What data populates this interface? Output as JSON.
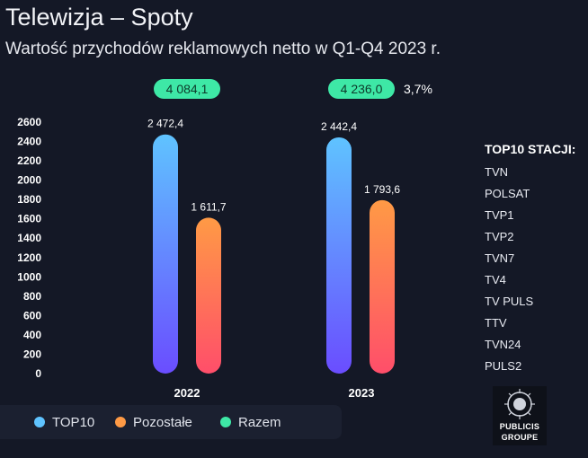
{
  "header": {
    "title": "Telewizja – Spoty",
    "subtitle": "Wartość przychodów reklamowych netto w Q1-Q4 2023 r."
  },
  "chart_data": {
    "type": "bar",
    "categories": [
      "2022",
      "2023"
    ],
    "series": [
      {
        "name": "TOP10",
        "values": [
          2472.4,
          2442.4
        ],
        "labels": [
          "2 472,4",
          "2 442,4"
        ]
      },
      {
        "name": "Pozostałe",
        "values": [
          1611.7,
          1793.6
        ],
        "labels": [
          "1 611,7",
          "1 793,6"
        ]
      }
    ],
    "totals": {
      "name": "Razem",
      "values": [
        4084.1,
        4236.0
      ],
      "labels": [
        "4 084,1",
        "4 236,0"
      ]
    },
    "change_label": "3,7%",
    "yticks": [
      0,
      200,
      400,
      600,
      800,
      1000,
      1200,
      1400,
      1600,
      1800,
      2000,
      2200,
      2400,
      2600
    ],
    "ylim": [
      0,
      2600
    ],
    "legend": [
      "TOP10",
      "Pozostałe",
      "Razem"
    ]
  },
  "colors": {
    "top10_top": "#5fc3ff",
    "top10_bottom": "#6a4dff",
    "other_top": "#ff9a45",
    "other_bottom": "#ff4e6a",
    "total": "#3ee8a6",
    "total_text": "#0d3a2a"
  },
  "stations": {
    "heading": "TOP10 STACJI:",
    "items": [
      "TVN",
      "POLSAT",
      "TVP1",
      "TVP2",
      "TVN7",
      "TV4",
      "TV PULS",
      "TTV",
      "TVN24",
      "PULS2"
    ]
  },
  "logo": {
    "line1": "PUBLICIS",
    "line2": "GROUPE"
  }
}
